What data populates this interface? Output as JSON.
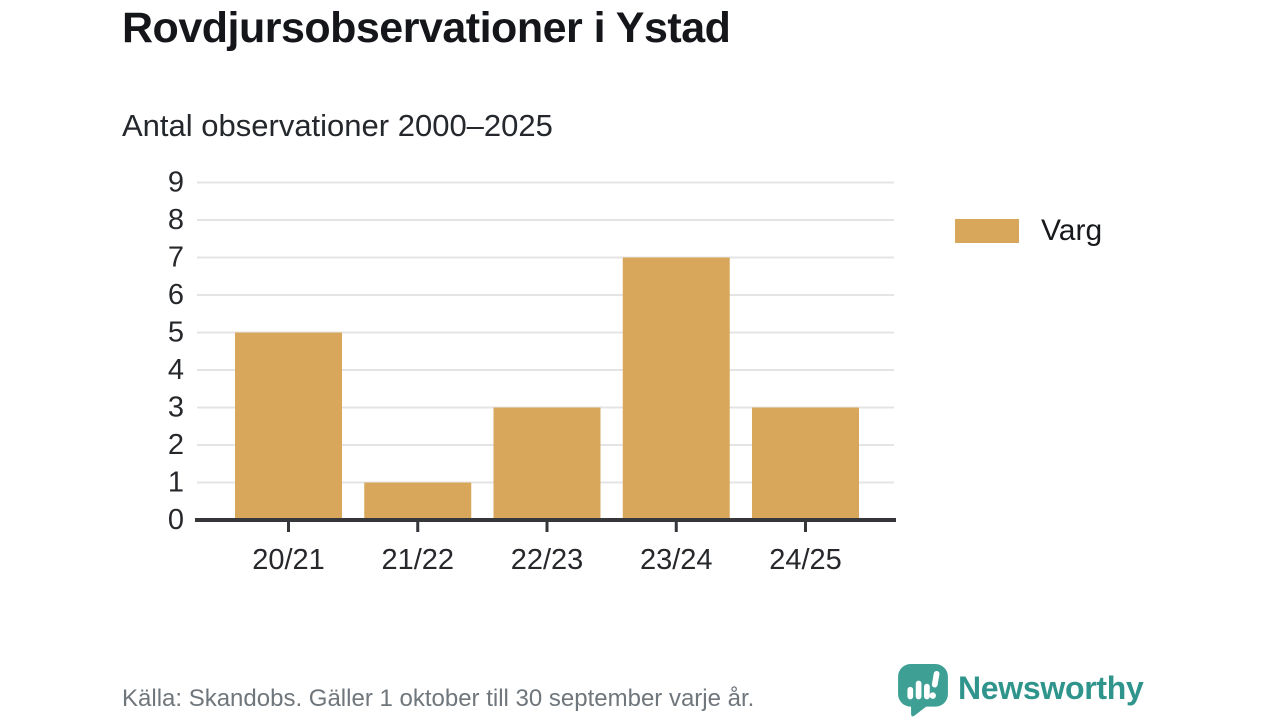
{
  "header": {
    "title": "Rovdjursobservationer i Ystad",
    "subtitle": "Antal observationer 2000–2025"
  },
  "chart_data": {
    "type": "bar",
    "categories": [
      "20/21",
      "21/22",
      "22/23",
      "23/24",
      "24/25"
    ],
    "series": [
      {
        "name": "Varg",
        "values": [
          5,
          1,
          3,
          7,
          3
        ],
        "color": "#D9A75B"
      }
    ],
    "title": "Rovdjursobservationer i Ystad",
    "subtitle": "Antal observationer 2000–2025",
    "xlabel": "",
    "ylabel": "",
    "ylim": [
      0,
      9
    ],
    "yticks": [
      0,
      1,
      2,
      3,
      4,
      5,
      6,
      7,
      8,
      9
    ],
    "grid": true,
    "legend_position": "right"
  },
  "legend": {
    "label": "Varg",
    "color": "#D9A75B"
  },
  "footer": {
    "source": "Källa: Skandobs. Gäller 1 oktober till 30 september varje år.",
    "brand": "Newsworthy"
  },
  "colors": {
    "bar": "#D9A75B",
    "grid": "#E4E4E4",
    "axis": "#35373a",
    "tick_text": "#26282b",
    "muted_text": "#6f767c",
    "brand_teal_text": "#2F958C",
    "brand_teal_icon": "#3EA095"
  },
  "icons": {
    "brand_icon_name": "newsworthy-speech-bubble-chart-icon"
  }
}
